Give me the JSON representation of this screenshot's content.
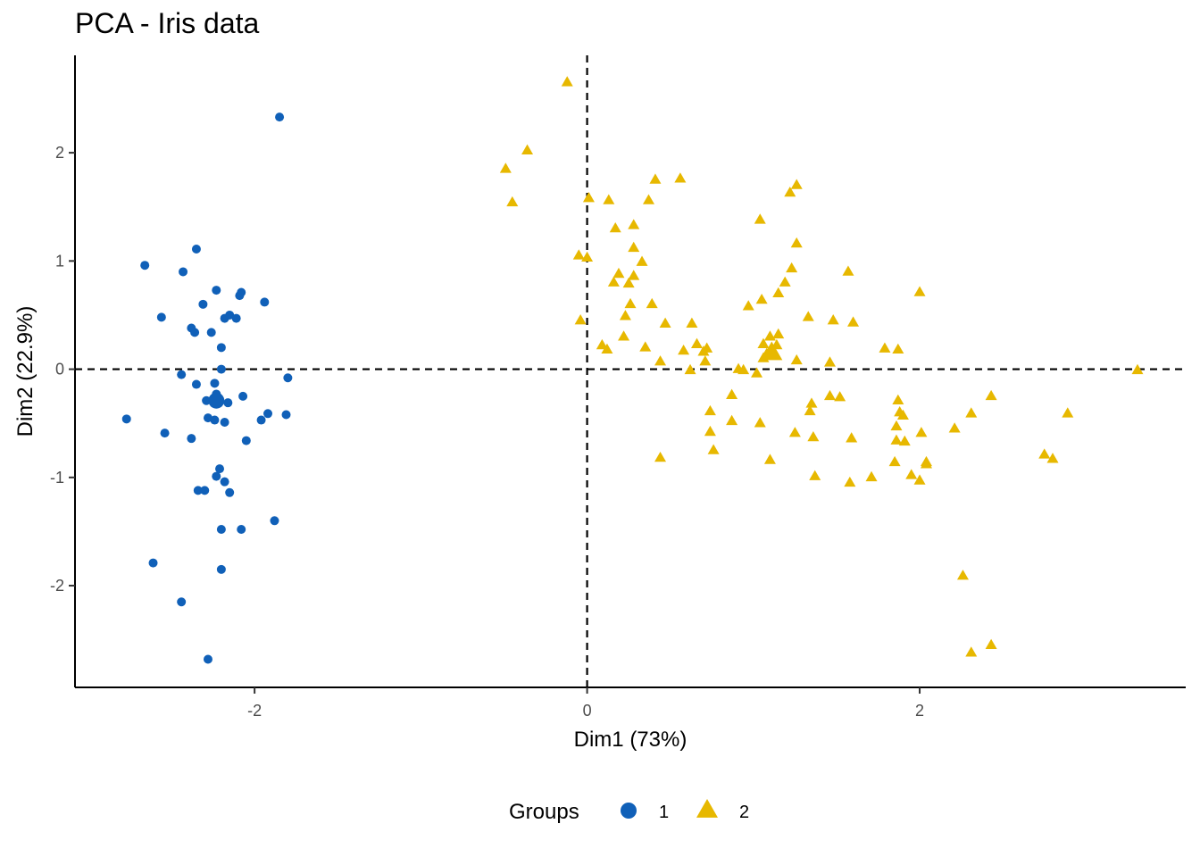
{
  "chart_data": {
    "type": "scatter",
    "title": "PCA - Iris data",
    "xlabel": "Dim1 (73%)",
    "ylabel": "Dim2 (22.9%)",
    "xlim": [
      -3.08,
      3.6
    ],
    "ylim": [
      -2.94,
      2.9
    ],
    "xticks": [
      -2,
      0,
      2
    ],
    "yticks": [
      -2,
      -1,
      0,
      1,
      2
    ],
    "xtick_labels": [
      "-2",
      "0",
      "2"
    ],
    "ytick_labels": [
      "-2",
      "-1",
      "0",
      "1",
      "2"
    ],
    "reference_lines": {
      "x": 0,
      "y": 0,
      "style": "dashed"
    },
    "grid": false,
    "legend": {
      "title": "Groups",
      "position": "bottom"
    },
    "series": [
      {
        "name": "1",
        "color": "#1060b8",
        "marker": "circle",
        "centroid": [
          -2.23,
          -0.29
        ],
        "points": [
          [
            -1.85,
            2.33
          ],
          [
            -2.35,
            1.11
          ],
          [
            -2.66,
            0.96
          ],
          [
            -2.43,
            0.9
          ],
          [
            -2.23,
            0.73
          ],
          [
            -2.08,
            0.71
          ],
          [
            -2.09,
            0.68
          ],
          [
            -1.94,
            0.62
          ],
          [
            -2.31,
            0.6
          ],
          [
            -2.56,
            0.48
          ],
          [
            -2.18,
            0.47
          ],
          [
            -2.15,
            0.5
          ],
          [
            -2.11,
            0.47
          ],
          [
            -2.38,
            0.38
          ],
          [
            -2.36,
            0.34
          ],
          [
            -2.26,
            0.34
          ],
          [
            -2.2,
            0.2
          ],
          [
            -2.2,
            0.0
          ],
          [
            -2.44,
            -0.05
          ],
          [
            -1.8,
            -0.08
          ],
          [
            -2.24,
            -0.13
          ],
          [
            -2.35,
            -0.14
          ],
          [
            -2.23,
            -0.23
          ],
          [
            -2.29,
            -0.29
          ],
          [
            -2.22,
            -0.26
          ],
          [
            -2.07,
            -0.25
          ],
          [
            -2.16,
            -0.31
          ],
          [
            -1.92,
            -0.41
          ],
          [
            -1.81,
            -0.42
          ],
          [
            -1.96,
            -0.47
          ],
          [
            -2.28,
            -0.45
          ],
          [
            -2.24,
            -0.47
          ],
          [
            -2.18,
            -0.49
          ],
          [
            -2.77,
            -0.46
          ],
          [
            -2.54,
            -0.59
          ],
          [
            -2.38,
            -0.64
          ],
          [
            -2.05,
            -0.66
          ],
          [
            -2.21,
            -0.92
          ],
          [
            -2.23,
            -0.99
          ],
          [
            -2.18,
            -1.04
          ],
          [
            -2.34,
            -1.12
          ],
          [
            -2.3,
            -1.12
          ],
          [
            -2.15,
            -1.14
          ],
          [
            -1.88,
            -1.4
          ],
          [
            -2.2,
            -1.48
          ],
          [
            -2.08,
            -1.48
          ],
          [
            -2.61,
            -1.79
          ],
          [
            -2.2,
            -1.85
          ],
          [
            -2.44,
            -2.15
          ],
          [
            -2.28,
            -2.68
          ]
        ]
      },
      {
        "name": "2",
        "color": "#e7b800",
        "marker": "triangle",
        "centroid": [
          1.11,
          0.15
        ],
        "points": [
          [
            -0.12,
            2.65
          ],
          [
            -0.36,
            2.02
          ],
          [
            -0.49,
            1.85
          ],
          [
            -0.45,
            1.54
          ],
          [
            0.41,
            1.75
          ],
          [
            0.56,
            1.76
          ],
          [
            0.01,
            1.58
          ],
          [
            0.13,
            1.56
          ],
          [
            0.37,
            1.56
          ],
          [
            1.26,
            1.7
          ],
          [
            1.22,
            1.63
          ],
          [
            0.17,
            1.3
          ],
          [
            0.28,
            1.33
          ],
          [
            1.04,
            1.38
          ],
          [
            0.28,
            1.12
          ],
          [
            1.26,
            1.16
          ],
          [
            -0.05,
            1.05
          ],
          [
            0.0,
            1.03
          ],
          [
            0.33,
            0.99
          ],
          [
            1.23,
            0.93
          ],
          [
            1.57,
            0.9
          ],
          [
            0.19,
            0.88
          ],
          [
            0.28,
            0.86
          ],
          [
            0.16,
            0.8
          ],
          [
            0.25,
            0.79
          ],
          [
            1.19,
            0.8
          ],
          [
            2.0,
            0.71
          ],
          [
            1.15,
            0.7
          ],
          [
            1.05,
            0.64
          ],
          [
            0.97,
            0.58
          ],
          [
            0.26,
            0.6
          ],
          [
            0.39,
            0.6
          ],
          [
            -0.04,
            0.45
          ],
          [
            0.47,
            0.42
          ],
          [
            0.63,
            0.42
          ],
          [
            1.33,
            0.48
          ],
          [
            1.48,
            0.45
          ],
          [
            1.6,
            0.43
          ],
          [
            1.15,
            0.32
          ],
          [
            1.1,
            0.3
          ],
          [
            0.23,
            0.49
          ],
          [
            0.22,
            0.3
          ],
          [
            0.09,
            0.22
          ],
          [
            0.12,
            0.18
          ],
          [
            0.35,
            0.2
          ],
          [
            0.66,
            0.23
          ],
          [
            0.7,
            0.16
          ],
          [
            0.72,
            0.19
          ],
          [
            0.58,
            0.17
          ],
          [
            1.06,
            0.23
          ],
          [
            1.08,
            0.14
          ],
          [
            1.06,
            0.1
          ],
          [
            1.1,
            0.17
          ],
          [
            1.14,
            0.22
          ],
          [
            1.79,
            0.19
          ],
          [
            1.87,
            0.18
          ],
          [
            1.26,
            0.08
          ],
          [
            1.46,
            0.06
          ],
          [
            0.44,
            0.07
          ],
          [
            0.71,
            0.07
          ],
          [
            0.62,
            -0.01
          ],
          [
            0.91,
            0.0
          ],
          [
            0.94,
            -0.01
          ],
          [
            1.02,
            -0.04
          ],
          [
            3.31,
            -0.01
          ],
          [
            0.87,
            -0.24
          ],
          [
            1.35,
            -0.32
          ],
          [
            1.46,
            -0.25
          ],
          [
            1.52,
            -0.26
          ],
          [
            2.43,
            -0.25
          ],
          [
            1.87,
            -0.29
          ],
          [
            1.34,
            -0.39
          ],
          [
            1.88,
            -0.4
          ],
          [
            1.9,
            -0.43
          ],
          [
            2.31,
            -0.41
          ],
          [
            2.89,
            -0.41
          ],
          [
            0.74,
            -0.39
          ],
          [
            0.87,
            -0.48
          ],
          [
            1.04,
            -0.5
          ],
          [
            2.21,
            -0.55
          ],
          [
            1.86,
            -0.53
          ],
          [
            1.86,
            -0.66
          ],
          [
            1.91,
            -0.67
          ],
          [
            2.01,
            -0.59
          ],
          [
            0.74,
            -0.58
          ],
          [
            1.25,
            -0.59
          ],
          [
            1.36,
            -0.63
          ],
          [
            1.59,
            -0.64
          ],
          [
            0.76,
            -0.75
          ],
          [
            0.44,
            -0.82
          ],
          [
            1.1,
            -0.84
          ],
          [
            1.85,
            -0.86
          ],
          [
            2.04,
            -0.86
          ],
          [
            2.04,
            -0.88
          ],
          [
            2.75,
            -0.79
          ],
          [
            2.8,
            -0.83
          ],
          [
            1.37,
            -0.99
          ],
          [
            1.58,
            -1.05
          ],
          [
            1.71,
            -1.0
          ],
          [
            1.95,
            -0.98
          ],
          [
            2.0,
            -1.03
          ],
          [
            2.26,
            -1.91
          ],
          [
            2.43,
            -2.55
          ],
          [
            2.31,
            -2.62
          ]
        ]
      }
    ]
  }
}
